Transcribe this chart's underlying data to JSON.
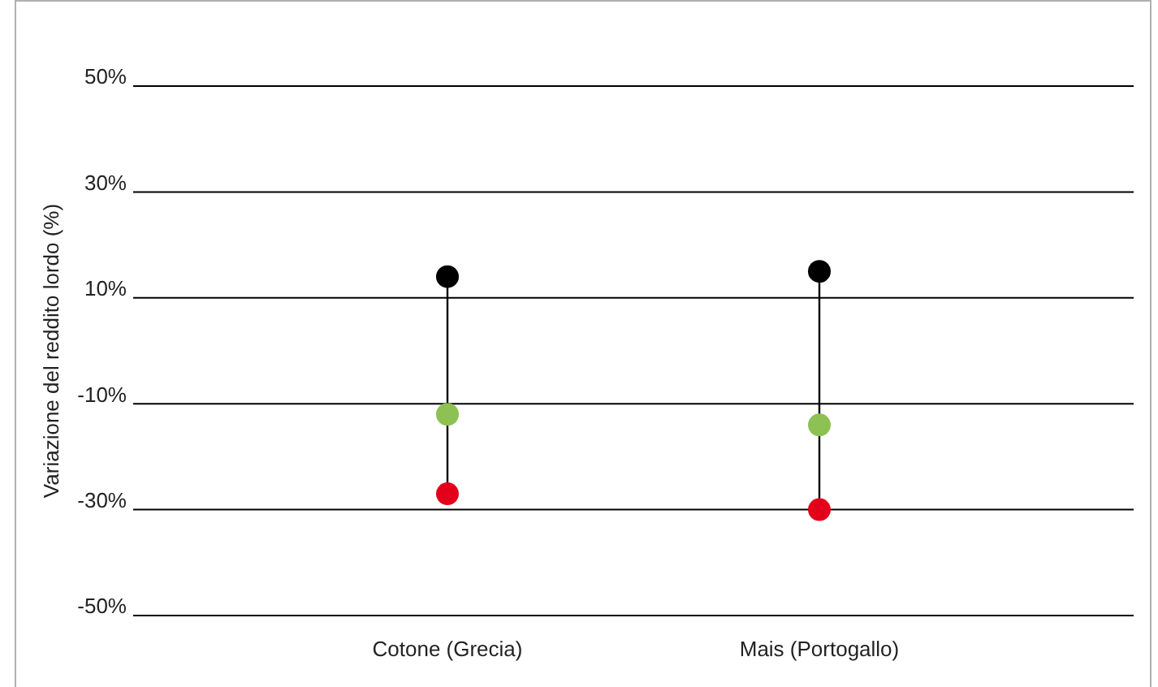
{
  "chart_data": {
    "type": "scatter",
    "ylabel": "Variazione del reddito lordo (%)",
    "categories": [
      "Cotone (Grecia)",
      "Mais (Portogallo)"
    ],
    "series": [
      {
        "type": "line",
        "color": "#000000",
        "x": [
          "Cotone (Grecia)",
          "Cotone (Grecia)"
        ],
        "values": [
          -27,
          14
        ],
        "marker": "none"
      },
      {
        "type": "line",
        "color": "#000000",
        "x": [
          "Mais (Portogallo)",
          "Mais (Portogallo)"
        ],
        "values": [
          -30,
          15
        ],
        "marker": "none"
      },
      {
        "color": "#000000",
        "values": [
          14,
          15
        ]
      },
      {
        "color": "#8dc153",
        "values": [
          -12,
          -14
        ]
      },
      {
        "color": "#e2001a",
        "values": [
          -27,
          -30
        ]
      }
    ],
    "ylim": [
      -50,
      50
    ],
    "yticks": [
      {
        "value": -50,
        "label": "-50%"
      },
      {
        "value": -30,
        "label": "-30%"
      },
      {
        "value": -10,
        "label": "-10%"
      },
      {
        "value": 10,
        "label": "10%"
      },
      {
        "value": 30,
        "label": "30%"
      },
      {
        "value": 50,
        "label": "50%"
      }
    ],
    "grid": "y",
    "marker": "circle"
  }
}
